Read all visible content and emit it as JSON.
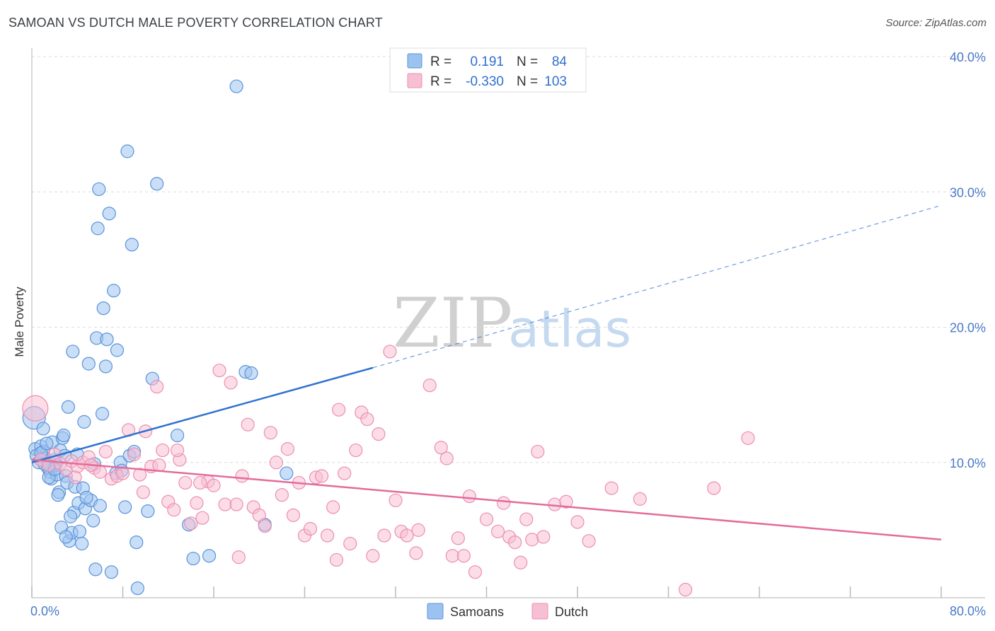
{
  "title": "SAMOAN VS DUTCH MALE POVERTY CORRELATION CHART",
  "source": "Source: ZipAtlas.com",
  "watermark": {
    "zip": "ZIP",
    "atlas": "atlas"
  },
  "legend": {
    "rows": [
      {
        "r_label": "R =",
        "r_value": "0.191",
        "n_label": "N =",
        "n_value": "84",
        "color": "#6fa8e8"
      },
      {
        "r_label": "R =",
        "r_value": "-0.330",
        "n_label": "N =",
        "n_value": "103",
        "color": "#f2a0bd"
      }
    ]
  },
  "colors": {
    "samoan_fill": "#9cc3f0",
    "samoan_stroke": "#5b93d9",
    "samoan_line": "#2f73cf",
    "dutch_fill": "#f7bfd3",
    "dutch_stroke": "#ec8fb0",
    "dutch_line": "#e56b9a"
  },
  "chart_data": {
    "type": "scatter",
    "title": "SAMOAN VS DUTCH MALE POVERTY CORRELATION CHART",
    "xlabel": "",
    "ylabel": "Male Poverty",
    "xlim": [
      0,
      80
    ],
    "ylim": [
      0,
      40
    ],
    "x_tick_labels": [
      "0.0%",
      "80.0%"
    ],
    "y_ticks": [
      10,
      20,
      30,
      40
    ],
    "y_tick_labels": [
      "10.0%",
      "20.0%",
      "30.0%",
      "40.0%"
    ],
    "grid": true,
    "legend_position": "top-center",
    "series": [
      {
        "name": "Samoans",
        "trend": {
          "x": [
            0,
            30
          ],
          "y": [
            10.0,
            17.0
          ],
          "extended_to": [
            80,
            29.0
          ]
        },
        "points": [
          [
            0.2,
            13.3
          ],
          [
            0.3,
            11.0
          ],
          [
            0.4,
            10.5
          ],
          [
            0.6,
            10.0
          ],
          [
            0.8,
            11.2
          ],
          [
            1.0,
            10.8
          ],
          [
            1.2,
            10.3
          ],
          [
            1.4,
            9.6
          ],
          [
            1.6,
            9.3
          ],
          [
            1.7,
            8.8
          ],
          [
            1.8,
            11.5
          ],
          [
            2.0,
            10.2
          ],
          [
            2.1,
            9.8
          ],
          [
            2.2,
            9.1
          ],
          [
            2.4,
            7.8
          ],
          [
            2.5,
            10.9
          ],
          [
            2.6,
            5.2
          ],
          [
            2.7,
            11.8
          ],
          [
            2.8,
            12.0
          ],
          [
            2.9,
            10.5
          ],
          [
            3.0,
            9.0
          ],
          [
            3.1,
            8.5
          ],
          [
            3.2,
            14.1
          ],
          [
            3.3,
            4.2
          ],
          [
            3.5,
            4.8
          ],
          [
            3.6,
            18.2
          ],
          [
            3.7,
            6.3
          ],
          [
            3.8,
            8.2
          ],
          [
            4.0,
            10.6
          ],
          [
            4.1,
            7.0
          ],
          [
            4.2,
            4.9
          ],
          [
            4.4,
            4.0
          ],
          [
            4.5,
            8.1
          ],
          [
            4.6,
            13.0
          ],
          [
            4.7,
            6.6
          ],
          [
            5.0,
            17.3
          ],
          [
            5.2,
            7.2
          ],
          [
            5.4,
            5.7
          ],
          [
            5.6,
            2.1
          ],
          [
            5.7,
            19.2
          ],
          [
            5.8,
            27.3
          ],
          [
            5.9,
            30.2
          ],
          [
            6.0,
            6.8
          ],
          [
            6.3,
            21.4
          ],
          [
            6.5,
            17.1
          ],
          [
            6.6,
            19.1
          ],
          [
            6.8,
            28.4
          ],
          [
            7.0,
            1.9
          ],
          [
            7.2,
            22.7
          ],
          [
            7.4,
            9.2
          ],
          [
            7.5,
            18.3
          ],
          [
            7.8,
            10.0
          ],
          [
            8.2,
            6.7
          ],
          [
            8.4,
            33.0
          ],
          [
            8.6,
            10.5
          ],
          [
            8.8,
            26.1
          ],
          [
            9.0,
            10.8
          ],
          [
            9.2,
            4.1
          ],
          [
            9.3,
            0.7
          ],
          [
            10.2,
            6.4
          ],
          [
            10.6,
            16.2
          ],
          [
            11.0,
            30.6
          ],
          [
            12.8,
            12.0
          ],
          [
            13.8,
            5.4
          ],
          [
            14.2,
            2.9
          ],
          [
            15.6,
            3.1
          ],
          [
            18.0,
            37.8
          ],
          [
            18.8,
            16.7
          ],
          [
            19.3,
            16.6
          ],
          [
            20.5,
            5.4
          ],
          [
            22.4,
            9.2
          ],
          [
            1.0,
            12.5
          ],
          [
            2.3,
            7.6
          ],
          [
            3.4,
            6.0
          ],
          [
            1.5,
            8.9
          ],
          [
            2.0,
            9.5
          ],
          [
            0.8,
            10.7
          ],
          [
            1.3,
            11.4
          ],
          [
            4.8,
            7.4
          ],
          [
            3.0,
            4.5
          ],
          [
            5.5,
            9.9
          ],
          [
            7.9,
            9.4
          ],
          [
            6.2,
            13.6
          ],
          [
            1.1,
            9.9
          ]
        ]
      },
      {
        "name": "Dutch",
        "trend": {
          "x": [
            0,
            80
          ],
          "y": [
            10.2,
            4.3
          ]
        },
        "points": [
          [
            0.3,
            14.0
          ],
          [
            0.8,
            10.2
          ],
          [
            1.5,
            9.8
          ],
          [
            2.0,
            10.6
          ],
          [
            2.5,
            9.9
          ],
          [
            3.0,
            9.5
          ],
          [
            3.5,
            10.1
          ],
          [
            4.0,
            9.7
          ],
          [
            4.5,
            10.0
          ],
          [
            5.0,
            10.4
          ],
          [
            5.5,
            9.6
          ],
          [
            6.0,
            9.3
          ],
          [
            6.5,
            10.8
          ],
          [
            7.0,
            8.8
          ],
          [
            7.5,
            9.0
          ],
          [
            8.0,
            9.2
          ],
          [
            8.5,
            12.4
          ],
          [
            9.0,
            10.6
          ],
          [
            9.5,
            9.1
          ],
          [
            10.0,
            12.3
          ],
          [
            10.5,
            9.7
          ],
          [
            11.0,
            15.6
          ],
          [
            11.5,
            10.9
          ],
          [
            12.0,
            7.1
          ],
          [
            12.5,
            6.5
          ],
          [
            13.0,
            10.2
          ],
          [
            13.5,
            8.5
          ],
          [
            14.0,
            5.5
          ],
          [
            14.5,
            7.0
          ],
          [
            15.0,
            5.9
          ],
          [
            15.5,
            8.6
          ],
          [
            16.0,
            8.3
          ],
          [
            16.5,
            16.8
          ],
          [
            17.0,
            6.9
          ],
          [
            17.5,
            15.9
          ],
          [
            18.0,
            6.9
          ],
          [
            18.5,
            9.0
          ],
          [
            19.0,
            12.8
          ],
          [
            19.5,
            6.7
          ],
          [
            20.0,
            6.1
          ],
          [
            20.5,
            5.3
          ],
          [
            21.0,
            12.2
          ],
          [
            21.5,
            10.0
          ],
          [
            22.0,
            7.6
          ],
          [
            22.5,
            11.0
          ],
          [
            23.0,
            6.1
          ],
          [
            23.5,
            8.5
          ],
          [
            24.0,
            4.6
          ],
          [
            24.5,
            5.1
          ],
          [
            25.0,
            8.9
          ],
          [
            25.5,
            9.0
          ],
          [
            26.0,
            4.6
          ],
          [
            26.5,
            6.7
          ],
          [
            27.0,
            13.9
          ],
          [
            27.5,
            9.2
          ],
          [
            28.0,
            4.0
          ],
          [
            28.5,
            10.9
          ],
          [
            29.0,
            13.7
          ],
          [
            29.5,
            13.2
          ],
          [
            30.0,
            3.1
          ],
          [
            30.5,
            12.1
          ],
          [
            31.0,
            4.6
          ],
          [
            31.5,
            18.2
          ],
          [
            32.0,
            7.2
          ],
          [
            32.5,
            4.9
          ],
          [
            33.0,
            4.6
          ],
          [
            34.0,
            5.0
          ],
          [
            35.0,
            15.7
          ],
          [
            36.0,
            11.1
          ],
          [
            36.5,
            10.3
          ],
          [
            37.0,
            3.1
          ],
          [
            37.5,
            4.4
          ],
          [
            38.0,
            3.1
          ],
          [
            38.5,
            7.5
          ],
          [
            39.0,
            1.9
          ],
          [
            40.0,
            5.8
          ],
          [
            41.0,
            4.9
          ],
          [
            41.5,
            7.0
          ],
          [
            42.0,
            4.5
          ],
          [
            42.5,
            4.1
          ],
          [
            43.0,
            2.6
          ],
          [
            43.5,
            5.8
          ],
          [
            44.0,
            4.3
          ],
          [
            44.5,
            10.8
          ],
          [
            45.0,
            4.5
          ],
          [
            46.0,
            6.9
          ],
          [
            47.0,
            7.1
          ],
          [
            48.0,
            5.6
          ],
          [
            49.0,
            4.2
          ],
          [
            51.0,
            8.1
          ],
          [
            53.5,
            7.3
          ],
          [
            57.5,
            0.6
          ],
          [
            60.0,
            8.1
          ],
          [
            63.0,
            11.8
          ],
          [
            18.2,
            3.0
          ],
          [
            14.8,
            8.5
          ],
          [
            26.8,
            2.8
          ],
          [
            33.8,
            3.3
          ],
          [
            11.2,
            9.8
          ],
          [
            9.8,
            7.8
          ],
          [
            5.2,
            9.8
          ],
          [
            12.8,
            10.9
          ],
          [
            3.8,
            8.9
          ]
        ]
      }
    ]
  },
  "bottom_legend": [
    {
      "label": "Samoans",
      "color": "#9cc3f0"
    },
    {
      "label": "Dutch",
      "color": "#f7bfd3"
    }
  ]
}
